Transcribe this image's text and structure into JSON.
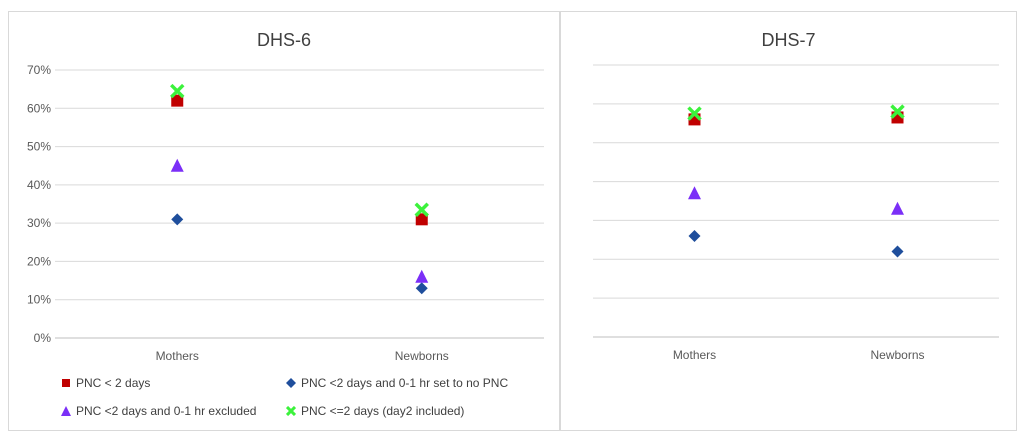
{
  "chart_data": [
    {
      "type": "scatter",
      "title": "DHS-6",
      "categories": [
        "Mothers",
        "Newborns"
      ],
      "ylim": [
        0,
        70
      ],
      "yticks": [
        "0%",
        "10%",
        "20%",
        "30%",
        "40%",
        "50%",
        "60%",
        "70%"
      ],
      "show_y_labels": true,
      "grid": true,
      "series": [
        {
          "name": "PNC < 2 days",
          "marker": "square",
          "color": "#c00000",
          "values": [
            62,
            31
          ]
        },
        {
          "name": "PNC <2 days and 0-1 hr set to no PNC",
          "marker": "diamond",
          "color": "#1f4e9c",
          "values": [
            31,
            13
          ]
        },
        {
          "name": "PNC <2 days and 0-1 hr excluded",
          "marker": "triangle",
          "color": "#7b2ff7",
          "values": [
            45,
            16
          ]
        },
        {
          "name": "PNC <=2 days (day2 included)",
          "marker": "cross",
          "color": "#3cf23c",
          "values": [
            64.5,
            33.5
          ]
        }
      ],
      "legend": "bottom"
    },
    {
      "type": "scatter",
      "title": "DHS-7",
      "categories": [
        "Mothers",
        "Newborns"
      ],
      "ylim": [
        0,
        70
      ],
      "show_y_labels": false,
      "grid": true,
      "series": [
        {
          "name": "PNC < 2 days",
          "marker": "square",
          "color": "#c00000",
          "values": [
            56,
            56.5
          ]
        },
        {
          "name": "PNC <2 days and 0-1 hr set to no PNC",
          "marker": "diamond",
          "color": "#1f4e9c",
          "values": [
            26,
            22
          ]
        },
        {
          "name": "PNC <2 days and 0-1 hr excluded",
          "marker": "triangle",
          "color": "#7b2ff7",
          "values": [
            37,
            33
          ]
        },
        {
          "name": "PNC <=2 days (day2 included)",
          "marker": "cross",
          "color": "#3cf23c",
          "values": [
            57.5,
            58
          ]
        }
      ]
    }
  ]
}
